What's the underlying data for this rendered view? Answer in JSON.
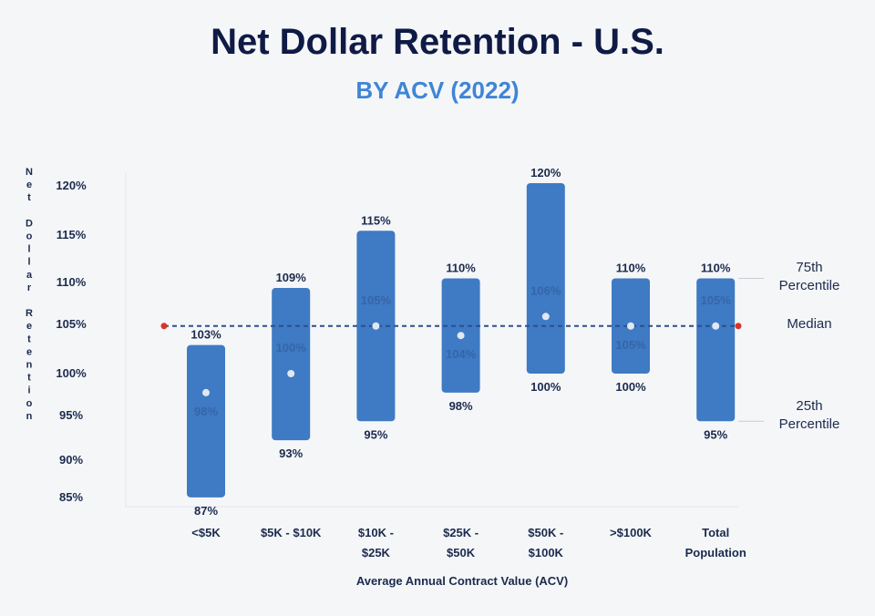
{
  "chart_data": {
    "type": "bar",
    "title": "Net Dollar Retention - U.S.",
    "subtitle": "BY ACV (2022)",
    "xlabel": "Average Annual Contract Value (ACV)",
    "ylabel": "Net Dollar Retention",
    "ylim": [
      85,
      120
    ],
    "yticks": [
      "120%",
      "115%",
      "110%",
      "105%",
      "100%",
      "95%",
      "90%",
      "85%"
    ],
    "categories": [
      [
        "<$5K"
      ],
      [
        "$5K - $10K"
      ],
      [
        "$10K -",
        "$25K"
      ],
      [
        "$25K -",
        "$50K"
      ],
      [
        "$50K -",
        "$100K"
      ],
      [
        ">$100K"
      ],
      [
        "Total",
        "Population"
      ]
    ],
    "series": [
      {
        "name": "75th Percentile",
        "values": [
          103,
          109,
          115,
          110,
          120,
          110,
          110
        ],
        "labels": [
          "103%",
          "109%",
          "115%",
          "110%",
          "120%",
          "110%",
          "110%"
        ]
      },
      {
        "name": "Median",
        "values": [
          98,
          100,
          105,
          104,
          106,
          105,
          105
        ],
        "labels": [
          "98%",
          "100%",
          "105%",
          "104%",
          "106%",
          "105%",
          "105%"
        ]
      },
      {
        "name": "25th Percentile",
        "values": [
          87,
          93,
          95,
          98,
          100,
          100,
          95
        ],
        "labels": [
          "87%",
          "93%",
          "95%",
          "98%",
          "100%",
          "100%",
          "95%"
        ]
      }
    ],
    "reference_line": {
      "name": "Median",
      "value": 105
    },
    "side_labels": {
      "p75": [
        "75th",
        "Percentile"
      ],
      "median": [
        "Median"
      ],
      "p25": [
        "25th",
        "Percentile"
      ]
    },
    "colors": {
      "bar": "#3f7ac4",
      "dot": "#dfe8f3",
      "line": "#2b4f8c",
      "endpoint": "#d9342b",
      "title": "#0f1b45",
      "subtitle": "#3f85d6"
    },
    "grid": false,
    "legend": "right side"
  }
}
